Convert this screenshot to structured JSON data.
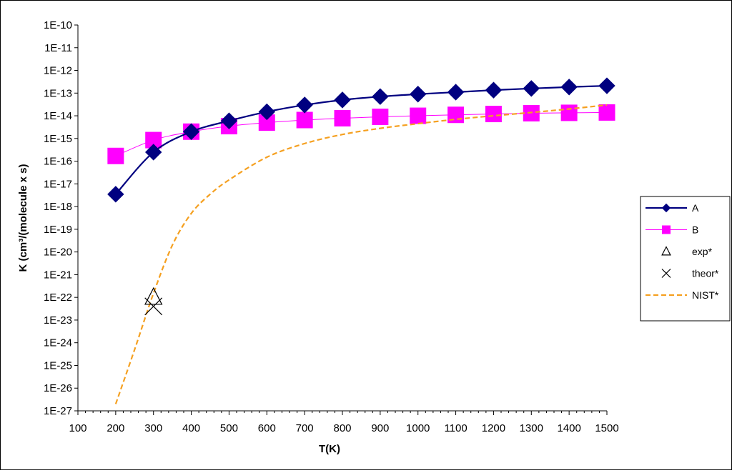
{
  "chart_data": {
    "type": "line",
    "xlabel": "T(K)",
    "ylabel": "K (cm³/(molecule x s)",
    "yscale": "log",
    "xlim": [
      100,
      1500
    ],
    "ylim": [
      1e-27,
      1e-10
    ],
    "x_ticks": [
      100,
      200,
      300,
      400,
      500,
      600,
      700,
      800,
      900,
      1000,
      1100,
      1200,
      1300,
      1400,
      1500
    ],
    "y_ticks": [
      "1E-10",
      "1E-11",
      "1E-12",
      "1E-13",
      "1E-14",
      "1E-15",
      "1E-16",
      "1E-17",
      "1E-18",
      "1E-19",
      "1E-20",
      "1E-21",
      "1E-22",
      "1E-23",
      "1E-24",
      "1E-25",
      "1E-26",
      "1E-27"
    ],
    "grid": false,
    "legend_position": "right",
    "series": [
      {
        "name": "A",
        "color": "#000080",
        "marker": "diamond",
        "line": "solid",
        "x": [
          200,
          300,
          400,
          500,
          600,
          700,
          800,
          900,
          1000,
          1100,
          1200,
          1300,
          1400,
          1500
        ],
        "y": [
          3.5e-18,
          2.5e-16,
          2e-15,
          6e-15,
          1.5e-14,
          3e-14,
          5e-14,
          7e-14,
          9e-14,
          1.1e-13,
          1.35e-13,
          1.6e-13,
          1.85e-13,
          2.1e-13
        ]
      },
      {
        "name": "B",
        "color": "#FF00FF",
        "marker": "square",
        "line": "solid",
        "x": [
          200,
          300,
          400,
          500,
          600,
          700,
          800,
          900,
          1000,
          1100,
          1200,
          1300,
          1400,
          1500
        ],
        "y": [
          1.7e-16,
          8.5e-16,
          2e-15,
          3.5e-15,
          5e-15,
          6.5e-15,
          7.8e-15,
          9e-15,
          1e-14,
          1.1e-14,
          1.2e-14,
          1.3e-14,
          1.35e-14,
          1.4e-14
        ]
      },
      {
        "name": "exp*",
        "color": "#000000",
        "marker": "triangle-open",
        "line": "none",
        "x": [
          300
        ],
        "y": [
          1e-22
        ]
      },
      {
        "name": "theor*",
        "color": "#000000",
        "marker": "x",
        "line": "none",
        "x": [
          300
        ],
        "y": [
          4e-23
        ]
      },
      {
        "name": "NIST*",
        "color": "#F5A020",
        "marker": "none",
        "line": "dashed",
        "x": [
          200,
          250,
          300,
          350,
          400,
          450,
          500,
          600,
          700,
          800,
          900,
          1000,
          1100,
          1200,
          1300,
          1400,
          1500
        ],
        "y": [
          2e-27,
          5e-25,
          1.5e-22,
          2e-20,
          5e-19,
          3.5e-18,
          1.5e-17,
          1.5e-16,
          6e-16,
          1.5e-15,
          2.8e-15,
          4.5e-15,
          7e-15,
          1e-14,
          1.4e-14,
          2e-14,
          3e-14
        ]
      }
    ]
  }
}
